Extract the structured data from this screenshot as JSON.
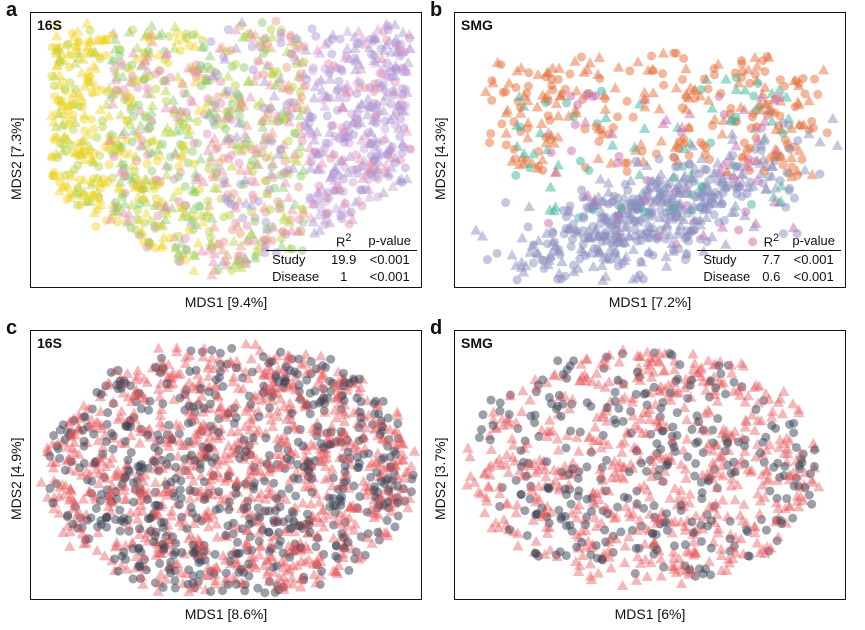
{
  "colors": {
    "study_palette": [
      "#f0d21e",
      "#b6d13a",
      "#86c96a",
      "#e48fb0",
      "#a692d0",
      "#eb9a7a",
      "#9ad2c0",
      "#c9a0dc",
      "#ffb347"
    ],
    "smg_palette": [
      "#e8703a",
      "#8a8fbe",
      "#3bb59a",
      "#c96ab0"
    ],
    "disease": "#e8555a",
    "control": "#3a3f52"
  },
  "panels": [
    {
      "letter": "a",
      "title": "16S",
      "xlabel": "MDS1 [9.4%]",
      "ylabel": "MDS2 [7.3%]",
      "stats": {
        "headers": [
          "",
          "R2",
          "p-value"
        ],
        "rows": [
          {
            "label": "Study",
            "r2": "19.9",
            "p": "<0.001"
          },
          {
            "label": "Disease",
            "r2": "1",
            "p": "<0.001"
          }
        ]
      }
    },
    {
      "letter": "b",
      "title": "SMG",
      "xlabel": "MDS1 [7.2%]",
      "ylabel": "MDS2 [4.3%]",
      "stats": {
        "headers": [
          "",
          "R2",
          "p-value"
        ],
        "rows": [
          {
            "label": "Study",
            "r2": "7.7",
            "p": "<0.001"
          },
          {
            "label": "Disease",
            "r2": "0.6",
            "p": "<0.001"
          }
        ]
      }
    },
    {
      "letter": "c",
      "title": "16S",
      "xlabel": "MDS1 [8.6%]",
      "ylabel": "MDS2 [4.9%]"
    },
    {
      "letter": "d",
      "title": "SMG",
      "xlabel": "MDS1 [6%]",
      "ylabel": "MDS2 [3.7%]"
    }
  ],
  "chart_data": [
    {
      "type": "scatter",
      "title": "16S",
      "xlabel": "MDS1 [9.4%]",
      "ylabel": "MDS2 [7.3%]",
      "color_by": "Study",
      "shape_by": "Disease",
      "n_points": 1400,
      "annotation": {
        "Study": {
          "R2": 19.9,
          "p": "<0.001"
        },
        "Disease": {
          "R2": 1,
          "p": "<0.001"
        }
      }
    },
    {
      "type": "scatter",
      "title": "SMG",
      "xlabel": "MDS1 [7.2%]",
      "ylabel": "MDS2 [4.3%]",
      "color_by": "Study",
      "shape_by": "Disease",
      "n_points": 900,
      "annotation": {
        "Study": {
          "R2": 7.7,
          "p": "<0.001"
        },
        "Disease": {
          "R2": 0.6,
          "p": "<0.001"
        }
      }
    },
    {
      "type": "scatter",
      "title": "16S",
      "xlabel": "MDS1 [8.6%]",
      "ylabel": "MDS2 [4.9%]",
      "color_by": "Disease",
      "n_points": 1600
    },
    {
      "type": "scatter",
      "title": "SMG",
      "xlabel": "MDS1 [6%]",
      "ylabel": "MDS2 [3.7%]",
      "color_by": "Disease",
      "n_points": 900
    }
  ]
}
